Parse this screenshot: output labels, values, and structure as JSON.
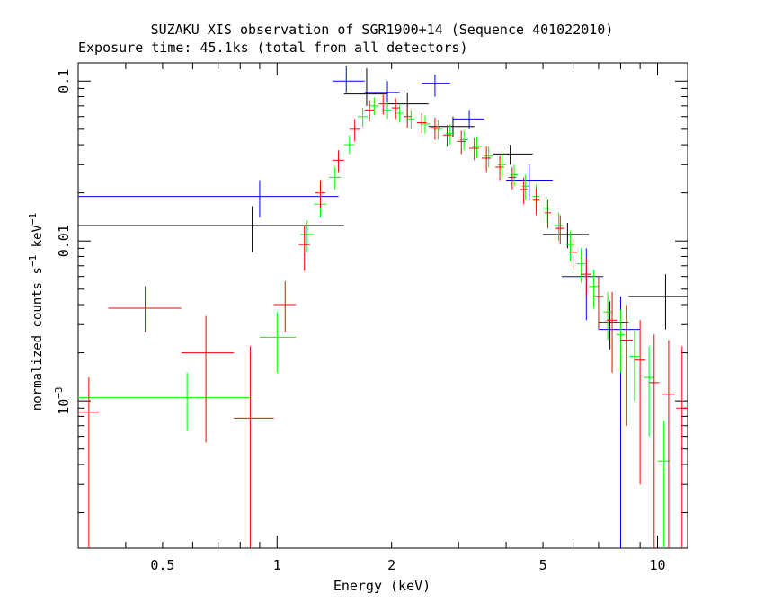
{
  "chart_data": {
    "type": "scatter",
    "title": "SUZAKU XIS observation of SGR1900+14 (Sequence 401022010)",
    "subtitle": "Exposure time: 45.1ks (total from all detectors)",
    "xlabel": "Energy (keV)",
    "ylabel": "normalized counts s^-1 keV^-1",
    "xscale": "log",
    "yscale": "log",
    "xlim": [
      0.3,
      12.0
    ],
    "ylim": [
      0.00012,
      0.13
    ],
    "x_ticks": [
      {
        "value": 0.5,
        "label": "0.5"
      },
      {
        "value": 1,
        "label": "1"
      },
      {
        "value": 2,
        "label": "2"
      },
      {
        "value": 5,
        "label": "5"
      },
      {
        "value": 10,
        "label": "10"
      }
    ],
    "y_ticks": [
      {
        "value": 0.1,
        "label": "0.1"
      },
      {
        "value": 0.01,
        "label": "0.01"
      },
      {
        "value": 0.001,
        "label": "10^-3"
      }
    ],
    "grid": false,
    "legend": "none",
    "series": [
      {
        "color": "#000000",
        "points": [
          {
            "x": 0.86,
            "xlo": 0.3,
            "xhi": 1.5,
            "y": 0.0125,
            "ylo": 0.0085,
            "yhi": 0.0165
          },
          {
            "x": 1.72,
            "xlo": 1.5,
            "xhi": 1.95,
            "y": 0.083,
            "ylo": 0.07,
            "yhi": 0.12
          },
          {
            "x": 2.2,
            "xlo": 1.95,
            "xhi": 2.5,
            "y": 0.072,
            "ylo": 0.06,
            "yhi": 0.085
          },
          {
            "x": 2.9,
            "xlo": 2.5,
            "xhi": 3.3,
            "y": 0.052,
            "ylo": 0.045,
            "yhi": 0.06
          },
          {
            "x": 4.1,
            "xlo": 3.7,
            "xhi": 4.7,
            "y": 0.035,
            "ylo": 0.03,
            "yhi": 0.04
          },
          {
            "x": 5.8,
            "xlo": 5.0,
            "xhi": 6.6,
            "y": 0.011,
            "ylo": 0.009,
            "yhi": 0.013
          },
          {
            "x": 7.5,
            "xlo": 7.0,
            "xhi": 8.4,
            "y": 0.0031,
            "ylo": 0.0021,
            "yhi": 0.0042
          },
          {
            "x": 10.5,
            "xlo": 8.4,
            "xhi": 12.0,
            "y": 0.0045,
            "ylo": 0.0028,
            "yhi": 0.0062
          }
        ]
      },
      {
        "color": "#0000ff",
        "points": [
          {
            "x": 0.9,
            "xlo": 0.3,
            "xhi": 1.45,
            "y": 0.019,
            "ylo": 0.014,
            "yhi": 0.024
          },
          {
            "x": 1.52,
            "xlo": 1.4,
            "xhi": 1.7,
            "y": 0.1,
            "ylo": 0.085,
            "yhi": 0.125
          },
          {
            "x": 1.95,
            "xlo": 1.7,
            "xhi": 2.1,
            "y": 0.085,
            "ylo": 0.07,
            "yhi": 0.1
          },
          {
            "x": 2.6,
            "xlo": 2.4,
            "xhi": 2.85,
            "y": 0.097,
            "ylo": 0.08,
            "yhi": 0.11
          },
          {
            "x": 3.2,
            "xlo": 2.9,
            "xhi": 3.5,
            "y": 0.058,
            "ylo": 0.05,
            "yhi": 0.066
          },
          {
            "x": 4.6,
            "xlo": 4.0,
            "xhi": 5.3,
            "y": 0.024,
            "ylo": 0.018,
            "yhi": 0.03
          },
          {
            "x": 6.5,
            "xlo": 5.6,
            "xhi": 7.2,
            "y": 0.006,
            "ylo": 0.0032,
            "yhi": 0.009
          },
          {
            "x": 8.0,
            "xlo": 7.0,
            "xhi": 9.0,
            "y": 0.0028,
            "ylo": 0.00012,
            "yhi": 0.0045
          }
        ]
      },
      {
        "color": "#00ff00",
        "points": [
          {
            "x": 0.58,
            "xlo": 0.3,
            "xhi": 0.85,
            "y": 0.00105,
            "ylo": 0.00065,
            "yhi": 0.0015
          },
          {
            "x": 1.0,
            "xlo": 0.9,
            "xhi": 1.12,
            "y": 0.0025,
            "ylo": 0.0015,
            "yhi": 0.0036
          },
          {
            "x": 1.2,
            "xlo": 1.15,
            "xhi": 1.25,
            "y": 0.011,
            "ylo": 0.0085,
            "yhi": 0.0135
          },
          {
            "x": 1.3,
            "xlo": 1.25,
            "xhi": 1.35,
            "y": 0.017,
            "ylo": 0.014,
            "yhi": 0.02
          },
          {
            "x": 1.42,
            "xlo": 1.37,
            "xhi": 1.47,
            "y": 0.025,
            "ylo": 0.021,
            "yhi": 0.029
          },
          {
            "x": 1.55,
            "xlo": 1.5,
            "xhi": 1.6,
            "y": 0.04,
            "ylo": 0.035,
            "yhi": 0.046
          },
          {
            "x": 1.68,
            "xlo": 1.63,
            "xhi": 1.73,
            "y": 0.06,
            "ylo": 0.052,
            "yhi": 0.068
          },
          {
            "x": 1.8,
            "xlo": 1.75,
            "xhi": 1.85,
            "y": 0.07,
            "ylo": 0.061,
            "yhi": 0.079
          },
          {
            "x": 1.95,
            "xlo": 1.9,
            "xhi": 2.0,
            "y": 0.066,
            "ylo": 0.058,
            "yhi": 0.074
          },
          {
            "x": 2.1,
            "xlo": 2.05,
            "xhi": 2.15,
            "y": 0.063,
            "ylo": 0.055,
            "yhi": 0.071
          },
          {
            "x": 2.25,
            "xlo": 2.2,
            "xhi": 2.3,
            "y": 0.058,
            "ylo": 0.05,
            "yhi": 0.066
          },
          {
            "x": 2.45,
            "xlo": 2.38,
            "xhi": 2.52,
            "y": 0.054,
            "ylo": 0.047,
            "yhi": 0.061
          },
          {
            "x": 2.65,
            "xlo": 2.58,
            "xhi": 2.72,
            "y": 0.05,
            "ylo": 0.043,
            "yhi": 0.057
          },
          {
            "x": 2.85,
            "xlo": 2.78,
            "xhi": 2.92,
            "y": 0.047,
            "ylo": 0.04,
            "yhi": 0.054
          },
          {
            "x": 3.1,
            "xlo": 3.02,
            "xhi": 3.18,
            "y": 0.043,
            "ylo": 0.037,
            "yhi": 0.049
          },
          {
            "x": 3.35,
            "xlo": 3.25,
            "xhi": 3.45,
            "y": 0.039,
            "ylo": 0.033,
            "yhi": 0.045
          },
          {
            "x": 3.6,
            "xlo": 3.5,
            "xhi": 3.7,
            "y": 0.034,
            "ylo": 0.029,
            "yhi": 0.039
          },
          {
            "x": 3.9,
            "xlo": 3.8,
            "xhi": 4.0,
            "y": 0.03,
            "ylo": 0.025,
            "yhi": 0.035
          },
          {
            "x": 4.2,
            "xlo": 4.1,
            "xhi": 4.3,
            "y": 0.026,
            "ylo": 0.022,
            "yhi": 0.03
          },
          {
            "x": 4.5,
            "xlo": 4.4,
            "xhi": 4.6,
            "y": 0.022,
            "ylo": 0.018,
            "yhi": 0.026
          },
          {
            "x": 4.8,
            "xlo": 4.7,
            "xhi": 4.9,
            "y": 0.019,
            "ylo": 0.0155,
            "yhi": 0.0225
          },
          {
            "x": 5.1,
            "xlo": 5.0,
            "xhi": 5.2,
            "y": 0.016,
            "ylo": 0.013,
            "yhi": 0.019
          },
          {
            "x": 5.5,
            "xlo": 5.35,
            "xhi": 5.65,
            "y": 0.0125,
            "ylo": 0.01,
            "yhi": 0.015
          },
          {
            "x": 5.9,
            "xlo": 5.75,
            "xhi": 6.05,
            "y": 0.0095,
            "ylo": 0.0075,
            "yhi": 0.0115
          },
          {
            "x": 6.3,
            "xlo": 6.15,
            "xhi": 6.45,
            "y": 0.0072,
            "ylo": 0.0055,
            "yhi": 0.009
          },
          {
            "x": 6.8,
            "xlo": 6.6,
            "xhi": 7.0,
            "y": 0.0052,
            "ylo": 0.0038,
            "yhi": 0.0066
          },
          {
            "x": 7.4,
            "xlo": 7.2,
            "xhi": 7.6,
            "y": 0.0036,
            "ylo": 0.0024,
            "yhi": 0.0048
          },
          {
            "x": 8.0,
            "xlo": 7.8,
            "xhi": 8.2,
            "y": 0.0026,
            "ylo": 0.0015,
            "yhi": 0.0037
          },
          {
            "x": 8.7,
            "xlo": 8.45,
            "xhi": 8.95,
            "y": 0.0019,
            "ylo": 0.001,
            "yhi": 0.0028
          },
          {
            "x": 9.5,
            "xlo": 9.2,
            "xhi": 9.8,
            "y": 0.0014,
            "ylo": 0.0006,
            "yhi": 0.0022
          },
          {
            "x": 10.4,
            "xlo": 10.0,
            "xhi": 10.8,
            "y": 0.00042,
            "ylo": 0.00012,
            "yhi": 0.00075
          }
        ]
      },
      {
        "color": "#ff0000",
        "points": [
          {
            "x": 0.32,
            "xlo": 0.3,
            "xhi": 0.34,
            "y": 0.00085,
            "ylo": 0.00012,
            "yhi": 0.0014
          },
          {
            "x": 0.45,
            "xlo": 0.36,
            "xhi": 0.56,
            "y": 0.0038,
            "ylo": 0.0027,
            "yhi": 0.0052
          },
          {
            "x": 0.65,
            "xlo": 0.56,
            "xhi": 0.77,
            "y": 0.002,
            "ylo": 0.00055,
            "yhi": 0.0034
          },
          {
            "x": 0.85,
            "xlo": 0.77,
            "xhi": 0.98,
            "y": 0.00078,
            "ylo": 0.00012,
            "yhi": 0.0022
          },
          {
            "x": 1.05,
            "xlo": 0.98,
            "xhi": 1.12,
            "y": 0.004,
            "ylo": 0.0027,
            "yhi": 0.0056
          },
          {
            "x": 1.18,
            "xlo": 1.14,
            "xhi": 1.22,
            "y": 0.0095,
            "ylo": 0.0065,
            "yhi": 0.0125
          },
          {
            "x": 1.3,
            "xlo": 1.26,
            "xhi": 1.34,
            "y": 0.02,
            "ylo": 0.016,
            "yhi": 0.024
          },
          {
            "x": 1.45,
            "xlo": 1.4,
            "xhi": 1.5,
            "y": 0.032,
            "ylo": 0.027,
            "yhi": 0.037
          },
          {
            "x": 1.6,
            "xlo": 1.55,
            "xhi": 1.65,
            "y": 0.05,
            "ylo": 0.042,
            "yhi": 0.058
          },
          {
            "x": 1.75,
            "xlo": 1.7,
            "xhi": 1.8,
            "y": 0.066,
            "ylo": 0.056,
            "yhi": 0.076
          },
          {
            "x": 1.9,
            "xlo": 1.85,
            "xhi": 1.95,
            "y": 0.072,
            "ylo": 0.062,
            "yhi": 0.082
          },
          {
            "x": 2.05,
            "xlo": 2.0,
            "xhi": 2.1,
            "y": 0.068,
            "ylo": 0.058,
            "yhi": 0.078
          },
          {
            "x": 2.2,
            "xlo": 2.15,
            "xhi": 2.25,
            "y": 0.06,
            "ylo": 0.051,
            "yhi": 0.069
          },
          {
            "x": 2.4,
            "xlo": 2.33,
            "xhi": 2.47,
            "y": 0.055,
            "ylo": 0.047,
            "yhi": 0.063
          },
          {
            "x": 2.6,
            "xlo": 2.53,
            "xhi": 2.67,
            "y": 0.051,
            "ylo": 0.043,
            "yhi": 0.059
          },
          {
            "x": 2.8,
            "xlo": 2.73,
            "xhi": 2.87,
            "y": 0.046,
            "ylo": 0.039,
            "yhi": 0.053
          },
          {
            "x": 3.05,
            "xlo": 2.97,
            "xhi": 3.13,
            "y": 0.042,
            "ylo": 0.035,
            "yhi": 0.049
          },
          {
            "x": 3.3,
            "xlo": 3.2,
            "xhi": 3.4,
            "y": 0.038,
            "ylo": 0.032,
            "yhi": 0.044
          },
          {
            "x": 3.55,
            "xlo": 3.45,
            "xhi": 3.65,
            "y": 0.033,
            "ylo": 0.027,
            "yhi": 0.039
          },
          {
            "x": 3.85,
            "xlo": 3.75,
            "xhi": 3.95,
            "y": 0.029,
            "ylo": 0.024,
            "yhi": 0.034
          },
          {
            "x": 4.15,
            "xlo": 4.05,
            "xhi": 4.25,
            "y": 0.025,
            "ylo": 0.021,
            "yhi": 0.029
          },
          {
            "x": 4.45,
            "xlo": 4.35,
            "xhi": 4.55,
            "y": 0.021,
            "ylo": 0.017,
            "yhi": 0.025
          },
          {
            "x": 4.8,
            "xlo": 4.7,
            "xhi": 4.9,
            "y": 0.018,
            "ylo": 0.0145,
            "yhi": 0.0215
          },
          {
            "x": 5.15,
            "xlo": 5.05,
            "xhi": 5.25,
            "y": 0.015,
            "ylo": 0.012,
            "yhi": 0.018
          },
          {
            "x": 5.55,
            "xlo": 5.4,
            "xhi": 5.7,
            "y": 0.012,
            "ylo": 0.0095,
            "yhi": 0.0145
          },
          {
            "x": 6.0,
            "xlo": 5.85,
            "xhi": 6.15,
            "y": 0.0085,
            "ylo": 0.0065,
            "yhi": 0.0105
          },
          {
            "x": 6.5,
            "xlo": 6.3,
            "xhi": 6.7,
            "y": 0.0062,
            "ylo": 0.0045,
            "yhi": 0.0079
          },
          {
            "x": 7.0,
            "xlo": 6.8,
            "xhi": 7.2,
            "y": 0.0045,
            "ylo": 0.0028,
            "yhi": 0.006
          },
          {
            "x": 7.6,
            "xlo": 7.35,
            "xhi": 7.85,
            "y": 0.0032,
            "ylo": 0.0015,
            "yhi": 0.0048
          },
          {
            "x": 8.3,
            "xlo": 8.0,
            "xhi": 8.6,
            "y": 0.0024,
            "ylo": 0.0007,
            "yhi": 0.004
          },
          {
            "x": 9.0,
            "xlo": 8.7,
            "xhi": 9.3,
            "y": 0.0018,
            "ylo": 0.0003,
            "yhi": 0.0032
          },
          {
            "x": 9.8,
            "xlo": 9.5,
            "xhi": 10.1,
            "y": 0.0013,
            "ylo": 0.00012,
            "yhi": 0.0026
          },
          {
            "x": 10.7,
            "xlo": 10.3,
            "xhi": 11.1,
            "y": 0.0011,
            "ylo": 0.00012,
            "yhi": 0.0024
          },
          {
            "x": 11.6,
            "xlo": 11.2,
            "xhi": 12.0,
            "y": 0.0009,
            "ylo": 0.00012,
            "yhi": 0.0022
          }
        ]
      }
    ]
  }
}
